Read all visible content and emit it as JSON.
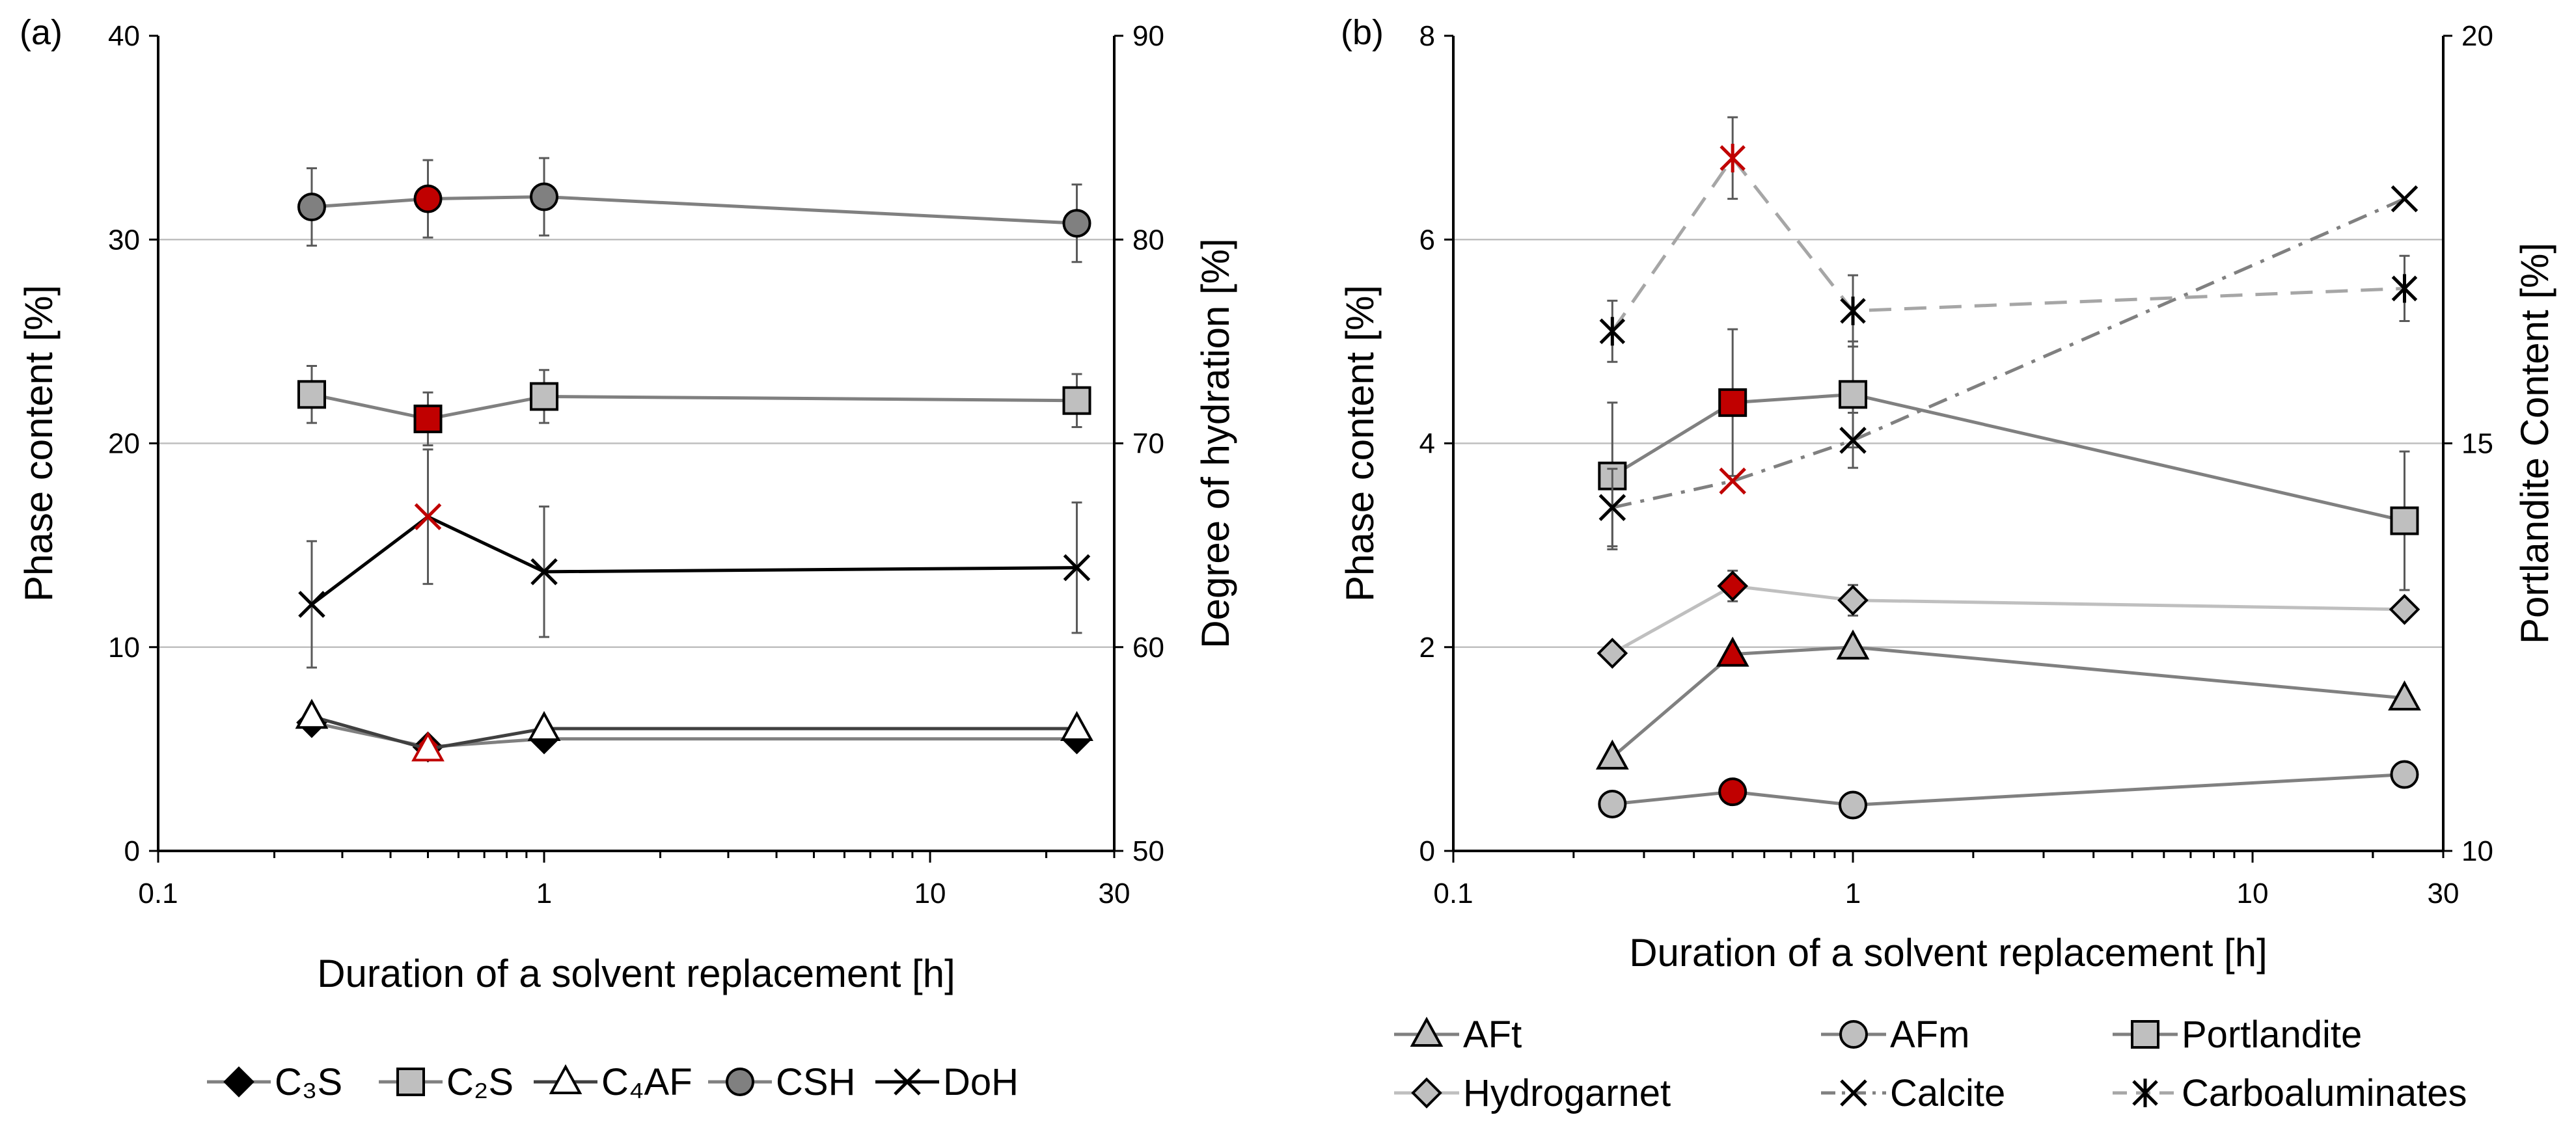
{
  "chart_data": [
    {
      "panel_label": "(a)",
      "type": "line",
      "xscale": "log",
      "xlim": [
        0.1,
        30
      ],
      "x_ticks": [
        0.1,
        1,
        10,
        30
      ],
      "x_tick_labels": [
        "0.1",
        "1",
        "10",
        "30"
      ],
      "xlabel": "Duration of a solvent replacement [h]",
      "ylabel": "Phase content [%]",
      "ylim": [
        0,
        40
      ],
      "y_ticks": [
        0,
        10,
        20,
        30,
        40
      ],
      "y_tick_labels": [
        "0",
        "10",
        "20",
        "30",
        "40"
      ],
      "y2label": "Degree of hydration [%]",
      "y2lim": [
        50,
        90
      ],
      "y2_ticks": [
        50,
        60,
        70,
        80,
        90
      ],
      "y2_tick_labels": [
        "50",
        "60",
        "70",
        "80",
        "90"
      ],
      "grid": true,
      "highlight_color": "#C00000",
      "highlight_x": 0.5,
      "series": [
        {
          "name": "C₃S",
          "axis": "left",
          "marker": "diamond",
          "fill": "#000000",
          "line": "#808080",
          "dash": "solid",
          "x": [
            0.25,
            0.5,
            1,
            24
          ],
          "values": [
            6.3,
            5.1,
            5.5,
            5.5
          ]
        },
        {
          "name": "C₂S",
          "axis": "left",
          "marker": "square",
          "fill": "#BFBFBF",
          "line": "#808080",
          "dash": "solid",
          "x": [
            0.25,
            0.5,
            1,
            24
          ],
          "values": [
            22.4,
            21.2,
            22.3,
            22.1
          ],
          "err": [
            1.4,
            1.3,
            1.3,
            1.3
          ]
        },
        {
          "name": "C₄AF",
          "axis": "left",
          "marker": "triangle-open",
          "fill": "#FFFFFF",
          "line": "#404040",
          "dash": "solid",
          "x": [
            0.25,
            0.5,
            1,
            24
          ],
          "values": [
            6.6,
            5.0,
            6.0,
            6.0
          ]
        },
        {
          "name": "CSH",
          "axis": "left",
          "marker": "circle",
          "fill": "#808080",
          "line": "#808080",
          "dash": "solid",
          "x": [
            0.25,
            0.5,
            1,
            24
          ],
          "values": [
            31.6,
            32.0,
            32.1,
            30.8
          ],
          "err": [
            1.9,
            1.9,
            1.9,
            1.9
          ]
        },
        {
          "name": "DoH",
          "axis": "right",
          "marker": "x",
          "fill": "none",
          "line": "#000000",
          "dash": "solid",
          "x": [
            0.25,
            0.5,
            1,
            24
          ],
          "values": [
            62.1,
            66.4,
            63.7,
            63.9
          ],
          "err": [
            3.1,
            3.3,
            3.2,
            3.2
          ]
        }
      ]
    },
    {
      "panel_label": "(b)",
      "type": "line",
      "xscale": "log",
      "xlim": [
        0.1,
        30
      ],
      "x_ticks": [
        0.1,
        1,
        10,
        30
      ],
      "x_tick_labels": [
        "0.1",
        "1",
        "10",
        "30"
      ],
      "xlabel": "Duration of a solvent replacement [h]",
      "ylabel": "Phase content [%]",
      "ylim": [
        0,
        8
      ],
      "y_ticks": [
        0,
        2,
        4,
        6,
        8
      ],
      "y_tick_labels": [
        "0",
        "2",
        "4",
        "6",
        "8"
      ],
      "y2label": "Portlandite Content [%]",
      "y2lim": [
        10,
        20
      ],
      "y2_ticks": [
        10,
        15,
        20
      ],
      "y2_tick_labels": [
        "10",
        "15",
        "20"
      ],
      "grid": true,
      "highlight_color": "#C00000",
      "highlight_x": 0.5,
      "series": [
        {
          "name": "AFt",
          "axis": "left",
          "marker": "triangle",
          "fill": "#BFBFBF",
          "line": "#808080",
          "dash": "solid",
          "x": [
            0.25,
            0.5,
            1,
            24
          ],
          "values": [
            0.92,
            1.93,
            2.0,
            1.5
          ]
        },
        {
          "name": "AFm",
          "axis": "left",
          "marker": "circle",
          "fill": "#BFBFBF",
          "line": "#808080",
          "dash": "solid",
          "x": [
            0.25,
            0.5,
            1,
            24
          ],
          "values": [
            0.46,
            0.58,
            0.45,
            0.75
          ]
        },
        {
          "name": "Portlandite",
          "axis": "right",
          "marker": "square",
          "fill": "#BFBFBF",
          "line": "#808080",
          "dash": "solid",
          "x": [
            0.25,
            0.5,
            1,
            24
          ],
          "values": [
            14.6,
            15.5,
            15.6,
            14.05
          ],
          "err": [
            0.9,
            0.9,
            0.65,
            0.85
          ]
        },
        {
          "name": "Hydrogarnet",
          "axis": "left",
          "marker": "diamond",
          "fill": "#BFBFBF",
          "line": "#BFBFBF",
          "dash": "solid",
          "x": [
            0.25,
            0.5,
            1,
            24
          ],
          "values": [
            1.94,
            2.6,
            2.46,
            2.37
          ],
          "err": [
            0,
            0.15,
            0.15,
            0
          ]
        },
        {
          "name": "Calcite",
          "axis": "left",
          "marker": "x",
          "fill": "none",
          "line": "#808080",
          "dash": "dashdot",
          "x": [
            0.25,
            0.5,
            1,
            24
          ],
          "values": [
            3.37,
            3.63,
            4.03,
            6.4
          ],
          "err": [
            0.38,
            0,
            0.27,
            0
          ]
        },
        {
          "name": "Carboaluminates",
          "axis": "left",
          "marker": "asterisk",
          "fill": "none",
          "line": "#A6A6A6",
          "dash": "dash",
          "x": [
            0.25,
            0.5,
            1,
            24
          ],
          "values": [
            5.1,
            6.8,
            5.3,
            5.52
          ],
          "err": [
            0.3,
            0.4,
            0.35,
            0.32
          ]
        }
      ]
    }
  ]
}
